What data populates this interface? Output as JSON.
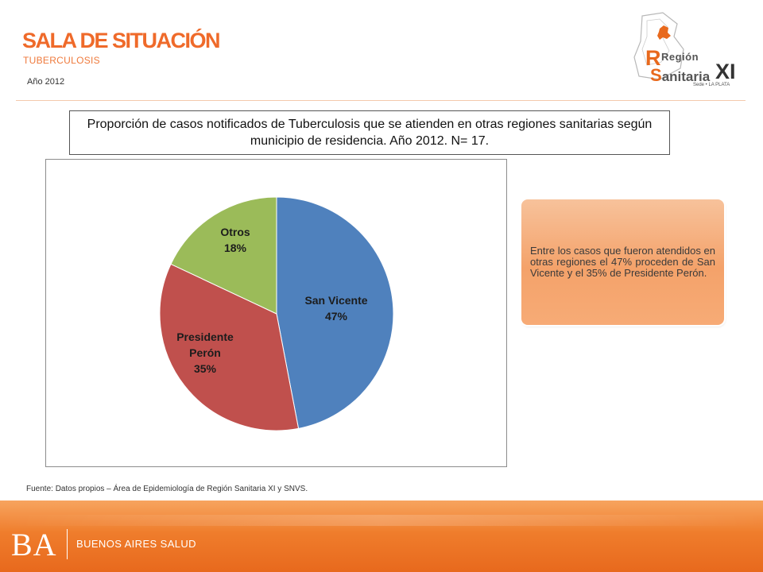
{
  "header": {
    "title": "SALA DE SITUACIÓN",
    "subtitle": "TUBERCULOSIS",
    "year": "Año 2012"
  },
  "logo": {
    "line1": "Región",
    "line2": "Sanitaria",
    "numeral": "XI",
    "seat": "Sede • LA PLATA",
    "brand_color": "#e8691d"
  },
  "chart_data": {
    "type": "pie",
    "title": "Proporción de casos notificados de Tuberculosis que se atienden en otras regiones sanitarias según municipio de residencia. Año 2012. N= 17.",
    "unit": "%",
    "slices": [
      {
        "label": "San Vicente",
        "value": 47,
        "value_label": "47%",
        "color": "#4f81bd"
      },
      {
        "label": "Presidente Perón",
        "value": 35,
        "value_label": "35%",
        "color": "#c0504d"
      },
      {
        "label": "Otros",
        "value": 18,
        "value_label": "18%",
        "color": "#9bbb59"
      }
    ]
  },
  "note": {
    "text": "Entre los casos que fueron atendidos en otras regiones el 47% proceden de San Vicente y el 35% de Presidente Perón."
  },
  "source": "Fuente: Datos propios – Área de Epidemiología de Región Sanitaria XI y SNVS.",
  "footer": {
    "ba": "BA",
    "label": "BUENOS AIRES SALUD"
  }
}
